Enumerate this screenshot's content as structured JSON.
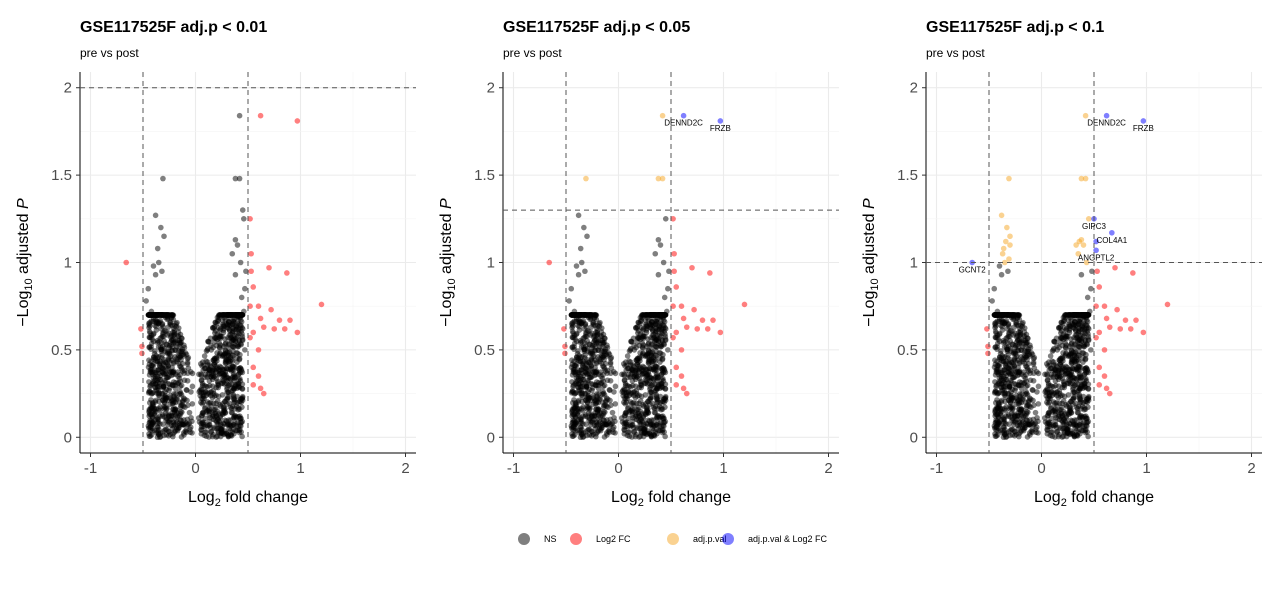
{
  "legend": {
    "items": [
      {
        "label": "NS",
        "color": "#000000"
      },
      {
        "label": "Log2 FC",
        "color": "#ff0000"
      },
      {
        "label": "adj.p.val",
        "color": "#f5a623"
      },
      {
        "label": "adj.p.val & Log2 FC",
        "color": "#0000ff"
      }
    ]
  },
  "chart_data": [
    {
      "type": "scatter",
      "title": "GSE117525F adj.p < 0.01",
      "subtitle": "pre vs post",
      "xlabel": "Log2 fold change",
      "ylabel": "−Log10 adjusted P",
      "xlim": [
        -1.1,
        2.1
      ],
      "ylim": [
        -0.09,
        2.09
      ],
      "xticks": [
        -1,
        0,
        1,
        2
      ],
      "yticks": [
        0.0,
        0.5,
        1.0,
        1.5,
        2.0
      ],
      "grid": true,
      "fc_cutoffs": [
        -0.5,
        0.5
      ],
      "p_cutoff": 2.0,
      "series": [
        {
          "name": "NS",
          "color": "#000000",
          "points": [
            [
              -0.35,
              1.0
            ],
            [
              -0.4,
              0.98
            ],
            [
              -0.32,
              0.95
            ],
            [
              -0.38,
              0.93
            ],
            [
              -0.3,
              1.15
            ],
            [
              -0.36,
              1.08
            ],
            [
              -0.33,
              1.2
            ],
            [
              -0.38,
              1.27
            ],
            [
              -0.31,
              1.48
            ],
            [
              -0.45,
              0.85
            ],
            [
              -0.47,
              0.78
            ],
            [
              -0.42,
              0.72
            ],
            [
              0.42,
              1.84
            ],
            [
              0.38,
              1.48
            ],
            [
              0.42,
              1.48
            ],
            [
              0.45,
              1.3
            ],
            [
              0.46,
              1.25
            ],
            [
              0.38,
              1.13
            ],
            [
              0.4,
              1.1
            ],
            [
              0.35,
              1.05
            ],
            [
              0.43,
              1.0
            ],
            [
              0.48,
              0.95
            ],
            [
              0.38,
              0.93
            ],
            [
              0.47,
              0.85
            ],
            [
              0.44,
              0.8
            ],
            [
              0.46,
              0.72
            ],
            [
              0.45,
              0.62
            ],
            [
              0.47,
              0.5
            ],
            [
              0.42,
              0.45
            ]
          ],
          "cloud": true
        },
        {
          "name": "Log2 FC",
          "color": "#ff0000",
          "points": [
            [
              -0.66,
              1.0
            ],
            [
              -0.52,
              0.62
            ],
            [
              -0.51,
              0.52
            ],
            [
              -0.51,
              0.48
            ],
            [
              0.62,
              1.84
            ],
            [
              0.97,
              1.81
            ],
            [
              0.52,
              1.25
            ],
            [
              0.53,
              1.05
            ],
            [
              0.53,
              0.95
            ],
            [
              0.55,
              0.86
            ],
            [
              0.7,
              0.97
            ],
            [
              0.87,
              0.94
            ],
            [
              0.52,
              0.75
            ],
            [
              0.6,
              0.75
            ],
            [
              0.72,
              0.73
            ],
            [
              1.2,
              0.76
            ],
            [
              0.62,
              0.68
            ],
            [
              0.8,
              0.67
            ],
            [
              0.9,
              0.67
            ],
            [
              0.65,
              0.63
            ],
            [
              0.75,
              0.62
            ],
            [
              0.85,
              0.62
            ],
            [
              0.97,
              0.6
            ],
            [
              0.55,
              0.6
            ],
            [
              0.52,
              0.57
            ],
            [
              0.6,
              0.5
            ],
            [
              0.55,
              0.4
            ],
            [
              0.6,
              0.35
            ],
            [
              0.62,
              0.28
            ],
            [
              0.65,
              0.25
            ],
            [
              0.55,
              0.3
            ]
          ]
        }
      ],
      "labels": []
    },
    {
      "type": "scatter",
      "title": "GSE117525F adj.p < 0.05",
      "subtitle": "pre vs post",
      "xlabel": "Log2 fold change",
      "ylabel": "−Log10 adjusted P",
      "xlim": [
        -1.1,
        2.1
      ],
      "ylim": [
        -0.09,
        2.09
      ],
      "xticks": [
        -1,
        0,
        1,
        2
      ],
      "yticks": [
        0.0,
        0.5,
        1.0,
        1.5,
        2.0
      ],
      "grid": true,
      "fc_cutoffs": [
        -0.5,
        0.5
      ],
      "p_cutoff": 1.3,
      "series": [
        {
          "name": "NS",
          "color": "#000000",
          "points": [
            [
              -0.35,
              1.0
            ],
            [
              -0.4,
              0.98
            ],
            [
              -0.32,
              0.95
            ],
            [
              -0.38,
              0.93
            ],
            [
              -0.3,
              1.15
            ],
            [
              -0.36,
              1.08
            ],
            [
              -0.33,
              1.2
            ],
            [
              -0.38,
              1.27
            ],
            [
              -0.45,
              0.85
            ],
            [
              -0.47,
              0.78
            ],
            [
              -0.42,
              0.72
            ],
            [
              0.45,
              1.25
            ],
            [
              0.38,
              1.13
            ],
            [
              0.4,
              1.1
            ],
            [
              0.35,
              1.05
            ],
            [
              0.43,
              1.0
            ],
            [
              0.48,
              0.95
            ],
            [
              0.38,
              0.93
            ],
            [
              0.47,
              0.85
            ],
            [
              0.44,
              0.8
            ],
            [
              0.46,
              0.72
            ],
            [
              0.45,
              0.62
            ],
            [
              0.47,
              0.5
            ],
            [
              0.42,
              0.45
            ]
          ],
          "cloud": true
        },
        {
          "name": "Log2 FC",
          "color": "#ff0000",
          "points": [
            [
              -0.66,
              1.0
            ],
            [
              -0.52,
              0.62
            ],
            [
              -0.51,
              0.52
            ],
            [
              -0.51,
              0.48
            ],
            [
              0.52,
              1.25
            ],
            [
              0.53,
              1.05
            ],
            [
              0.53,
              0.95
            ],
            [
              0.55,
              0.86
            ],
            [
              0.7,
              0.97
            ],
            [
              0.87,
              0.94
            ],
            [
              0.52,
              0.75
            ],
            [
              0.6,
              0.75
            ],
            [
              0.72,
              0.73
            ],
            [
              1.2,
              0.76
            ],
            [
              0.62,
              0.68
            ],
            [
              0.8,
              0.67
            ],
            [
              0.9,
              0.67
            ],
            [
              0.65,
              0.63
            ],
            [
              0.75,
              0.62
            ],
            [
              0.85,
              0.62
            ],
            [
              0.97,
              0.6
            ],
            [
              0.55,
              0.6
            ],
            [
              0.52,
              0.57
            ],
            [
              0.6,
              0.5
            ],
            [
              0.55,
              0.4
            ],
            [
              0.6,
              0.35
            ],
            [
              0.62,
              0.28
            ],
            [
              0.65,
              0.25
            ],
            [
              0.55,
              0.3
            ]
          ]
        },
        {
          "name": "adj.p.val",
          "color": "#f5a623",
          "points": [
            [
              0.42,
              1.84
            ],
            [
              -0.31,
              1.48
            ],
            [
              0.38,
              1.48
            ],
            [
              0.42,
              1.48
            ]
          ]
        },
        {
          "name": "adj.p.val & Log2 FC",
          "color": "#0000ff",
          "points": [
            [
              0.62,
              1.84
            ],
            [
              0.97,
              1.81
            ]
          ]
        }
      ],
      "labels": [
        {
          "text": "DENND2C",
          "x": 0.62,
          "y": 1.84
        },
        {
          "text": "FRZB",
          "x": 0.97,
          "y": 1.81
        }
      ]
    },
    {
      "type": "scatter",
      "title": "GSE117525F adj.p < 0.1",
      "subtitle": "pre vs post",
      "xlabel": "Log2 fold change",
      "ylabel": "−Log10 adjusted P",
      "xlim": [
        -1.1,
        2.1
      ],
      "ylim": [
        -0.09,
        2.09
      ],
      "xticks": [
        -1,
        0,
        1,
        2
      ],
      "yticks": [
        0.0,
        0.5,
        1.0,
        1.5,
        2.0
      ],
      "grid": true,
      "fc_cutoffs": [
        -0.5,
        0.5
      ],
      "p_cutoff": 1.0,
      "series": [
        {
          "name": "NS",
          "color": "#000000",
          "points": [
            [
              -0.4,
              0.98
            ],
            [
              -0.32,
              0.95
            ],
            [
              -0.38,
              0.93
            ],
            [
              -0.45,
              0.85
            ],
            [
              -0.47,
              0.78
            ],
            [
              -0.42,
              0.72
            ],
            [
              0.48,
              0.95
            ],
            [
              0.38,
              0.93
            ],
            [
              0.47,
              0.85
            ],
            [
              0.44,
              0.8
            ],
            [
              0.46,
              0.72
            ],
            [
              0.45,
              0.62
            ],
            [
              0.47,
              0.5
            ],
            [
              0.42,
              0.45
            ]
          ],
          "cloud": true
        },
        {
          "name": "Log2 FC",
          "color": "#ff0000",
          "points": [
            [
              -0.52,
              0.62
            ],
            [
              -0.51,
              0.52
            ],
            [
              -0.51,
              0.48
            ],
            [
              0.53,
              0.95
            ],
            [
              0.55,
              0.86
            ],
            [
              0.7,
              0.97
            ],
            [
              0.87,
              0.94
            ],
            [
              0.52,
              0.75
            ],
            [
              0.6,
              0.75
            ],
            [
              0.72,
              0.73
            ],
            [
              1.2,
              0.76
            ],
            [
              0.62,
              0.68
            ],
            [
              0.8,
              0.67
            ],
            [
              0.9,
              0.67
            ],
            [
              0.65,
              0.63
            ],
            [
              0.75,
              0.62
            ],
            [
              0.85,
              0.62
            ],
            [
              0.97,
              0.6
            ],
            [
              0.55,
              0.6
            ],
            [
              0.52,
              0.57
            ],
            [
              0.6,
              0.5
            ],
            [
              0.55,
              0.4
            ],
            [
              0.6,
              0.35
            ],
            [
              0.62,
              0.28
            ],
            [
              0.65,
              0.25
            ],
            [
              0.55,
              0.3
            ]
          ]
        },
        {
          "name": "adj.p.val",
          "color": "#f5a623",
          "points": [
            [
              0.42,
              1.84
            ],
            [
              -0.31,
              1.48
            ],
            [
              0.38,
              1.48
            ],
            [
              0.42,
              1.48
            ],
            [
              -0.35,
              1.0
            ],
            [
              -0.3,
              1.15
            ],
            [
              -0.36,
              1.08
            ],
            [
              -0.33,
              1.2
            ],
            [
              -0.38,
              1.27
            ],
            [
              -0.3,
              1.1
            ],
            [
              -0.34,
              1.12
            ],
            [
              -0.37,
              1.05
            ],
            [
              -0.31,
              1.02
            ],
            [
              0.45,
              1.25
            ],
            [
              0.38,
              1.13
            ],
            [
              0.4,
              1.1
            ],
            [
              0.35,
              1.05
            ],
            [
              0.43,
              1.0
            ],
            [
              0.36,
              1.12
            ],
            [
              0.33,
              1.1
            ]
          ]
        },
        {
          "name": "adj.p.val & Log2 FC",
          "color": "#0000ff",
          "points": [
            [
              0.62,
              1.84
            ],
            [
              0.97,
              1.81
            ],
            [
              -0.66,
              1.0
            ],
            [
              0.5,
              1.25
            ],
            [
              0.67,
              1.17
            ],
            [
              0.52,
              1.12
            ],
            [
              0.52,
              1.07
            ]
          ]
        }
      ],
      "labels": [
        {
          "text": "DENND2C",
          "x": 0.62,
          "y": 1.84
        },
        {
          "text": "FRZB",
          "x": 0.97,
          "y": 1.81
        },
        {
          "text": "GIPC3",
          "x": 0.5,
          "y": 1.25
        },
        {
          "text": "COL4A1",
          "x": 0.67,
          "y": 1.17
        },
        {
          "text": "ANGPTL2",
          "x": 0.52,
          "y": 1.07
        },
        {
          "text": "GCNT2",
          "x": -0.66,
          "y": 1.0
        }
      ]
    }
  ]
}
